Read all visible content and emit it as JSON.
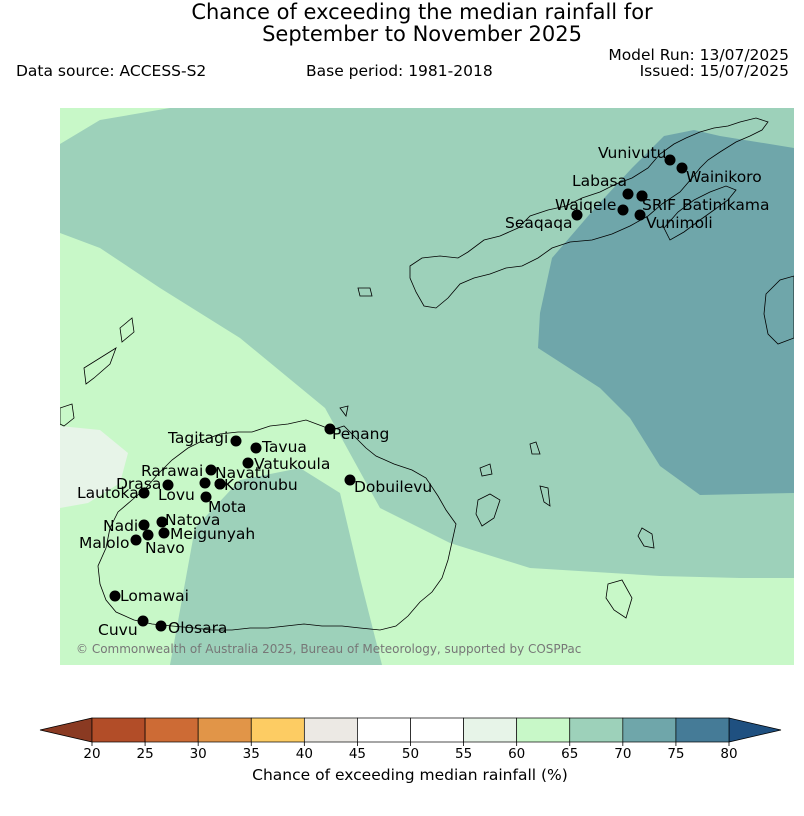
{
  "title": {
    "line1": "Chance of exceeding the median rainfall for",
    "line2": "September to November 2025"
  },
  "meta": {
    "model_run": "Model Run: 13/07/2025",
    "issued": "Issued: 15/07/2025",
    "data_source": "Data source: ACCESS-S2",
    "base_period": "Base period: 1981-2018"
  },
  "copyright": "© Commonwealth of Australia 2025, Bureau of Meteorology, supported by COSPPac",
  "colors": {
    "bin_55_60": "#e7f4e8",
    "bin_60_65": "#c8f8c8",
    "bin_65_70": "#9dd1ba",
    "bin_70_75": "#6fa6aa",
    "bin_75_80": "#457b97",
    "coast": "#000000",
    "station": "#000000"
  },
  "stations": [
    "Vunivutu",
    "Wainikoro",
    "Labasa",
    "SRIF",
    "Batinikama",
    "Waiqele",
    "Seaqaqa",
    "Vunimoli",
    "Tagitagi",
    "Tavua",
    "Penang",
    "Vatukoula",
    "Rarawai",
    "Navatu",
    "Koronubu",
    "Dobuilevu",
    "Drasa",
    "Lautoka",
    "Lovu",
    "Mota",
    "Natova",
    "Nadi",
    "Meigunyah",
    "Malolo",
    "Navo",
    "Lomawai",
    "Cuvu",
    "Olosara"
  ],
  "legend": {
    "label": "Chance of exceeding median rainfall (%)",
    "ticks": [
      "20",
      "25",
      "30",
      "35",
      "40",
      "45",
      "50",
      "55",
      "60",
      "65",
      "70",
      "75",
      "80"
    ],
    "colors": [
      "#b24d28",
      "#cd6b35",
      "#e19548",
      "#fdcc63",
      "#ece9e4",
      "#ffffff",
      "#ffffff",
      "#e7f4e8",
      "#c8f8c8",
      "#9dd1ba",
      "#6fa6aa",
      "#457b97"
    ],
    "low_color": "#8a3a22",
    "high_color": "#1f5080"
  }
}
